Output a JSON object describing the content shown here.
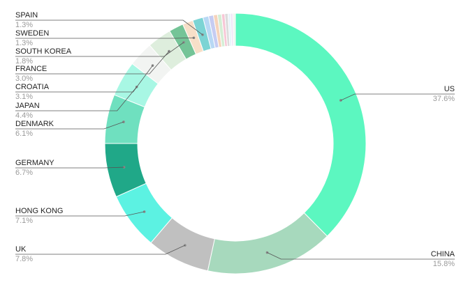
{
  "chart_data": {
    "type": "pie",
    "variant": "donut",
    "slices": [
      {
        "label": "US",
        "percent_text": "37.6%",
        "value": 37.6,
        "color": "#5cf7c0"
      },
      {
        "label": "CHINA",
        "percent_text": "15.8%",
        "value": 15.8,
        "color": "#a7d9bd"
      },
      {
        "label": "UK",
        "percent_text": "7.8%",
        "value": 7.8,
        "color": "#c0c0c0"
      },
      {
        "label": "HONG KONG",
        "percent_text": "7.1%",
        "value": 7.1,
        "color": "#5cf2e2"
      },
      {
        "label": "GERMANY",
        "percent_text": "6.7%",
        "value": 6.7,
        "color": "#20a888"
      },
      {
        "label": "DENMARK",
        "percent_text": "6.1%",
        "value": 6.1,
        "color": "#6fe0bf"
      },
      {
        "label": "JAPAN",
        "percent_text": "4.4%",
        "value": 4.4,
        "color": "#a8f7e4"
      },
      {
        "label": "CROATIA",
        "percent_text": "3.1%",
        "value": 3.1,
        "color": "#f2f4f2"
      },
      {
        "label": "FRANCE",
        "percent_text": "3.0%",
        "value": 3.0,
        "color": "#deeedd"
      },
      {
        "label": "SOUTH KOREA",
        "percent_text": "1.8%",
        "value": 1.8,
        "color": "#74c497"
      },
      {
        "label": "SWEDEN",
        "percent_text": "1.3%",
        "value": 1.3,
        "color": "#f7dfc8"
      },
      {
        "label": "SPAIN",
        "percent_text": "1.3%",
        "value": 1.3,
        "color": "#7cd4d4"
      },
      {
        "label": "",
        "percent_text": "",
        "value": 0.7,
        "color": "#b8d8f4"
      },
      {
        "label": "",
        "percent_text": "",
        "value": 0.6,
        "color": "#c6ccf2"
      },
      {
        "label": "",
        "percent_text": "",
        "value": 0.5,
        "color": "#f6d3bb"
      },
      {
        "label": "",
        "percent_text": "",
        "value": 0.5,
        "color": "#d5eed5"
      },
      {
        "label": "",
        "percent_text": "",
        "value": 0.4,
        "color": "#f7c7d6"
      },
      {
        "label": "",
        "percent_text": "",
        "value": 0.4,
        "color": "#dcdcdc"
      },
      {
        "label": "",
        "percent_text": "",
        "value": 0.3,
        "color": "#e6f2fa"
      },
      {
        "label": "",
        "percent_text": "",
        "value": 0.3,
        "color": "#f1e6f8"
      },
      {
        "label": "",
        "percent_text": "",
        "value": 0.3,
        "color": "#eef6ee"
      }
    ]
  }
}
